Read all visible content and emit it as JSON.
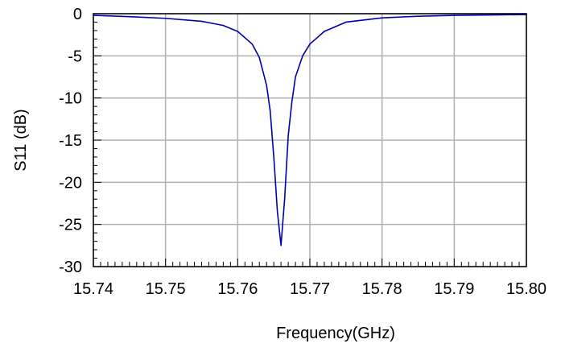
{
  "chart_data": {
    "type": "line",
    "title": "",
    "xlabel": "Frequency(GHz)",
    "ylabel": "S11 (dB)",
    "xlim": [
      15.74,
      15.8
    ],
    "ylim": [
      -30,
      0
    ],
    "grid": true,
    "x_ticks": [
      15.74,
      15.75,
      15.76,
      15.77,
      15.78,
      15.79,
      15.8
    ],
    "x_tick_labels": [
      "15.74",
      "15.75",
      "15.76",
      "15.77",
      "15.78",
      "15.79",
      "15.80"
    ],
    "y_ticks": [
      0,
      -5,
      -10,
      -15,
      -20,
      -25,
      -30
    ],
    "y_tick_labels": [
      "0",
      "-5",
      "-10",
      "-15",
      "-20",
      "-25",
      "-30"
    ],
    "series": [
      {
        "color": "#0000aa",
        "x": [
          15.74,
          15.745,
          15.75,
          15.755,
          15.758,
          15.76,
          15.762,
          15.763,
          15.764,
          15.7645,
          15.765,
          15.7655,
          15.766,
          15.7665,
          15.767,
          15.7675,
          15.768,
          15.769,
          15.77,
          15.772,
          15.775,
          15.78,
          15.785,
          15.79,
          15.795,
          15.8
        ],
        "y": [
          -0.2,
          -0.35,
          -0.55,
          -0.9,
          -1.4,
          -2.1,
          -3.6,
          -5.2,
          -8.5,
          -11.5,
          -17.0,
          -23.5,
          -27.5,
          -22.0,
          -14.5,
          -10.5,
          -7.5,
          -5.0,
          -3.6,
          -2.1,
          -1.0,
          -0.5,
          -0.3,
          -0.2,
          -0.15,
          -0.1
        ]
      }
    ]
  }
}
